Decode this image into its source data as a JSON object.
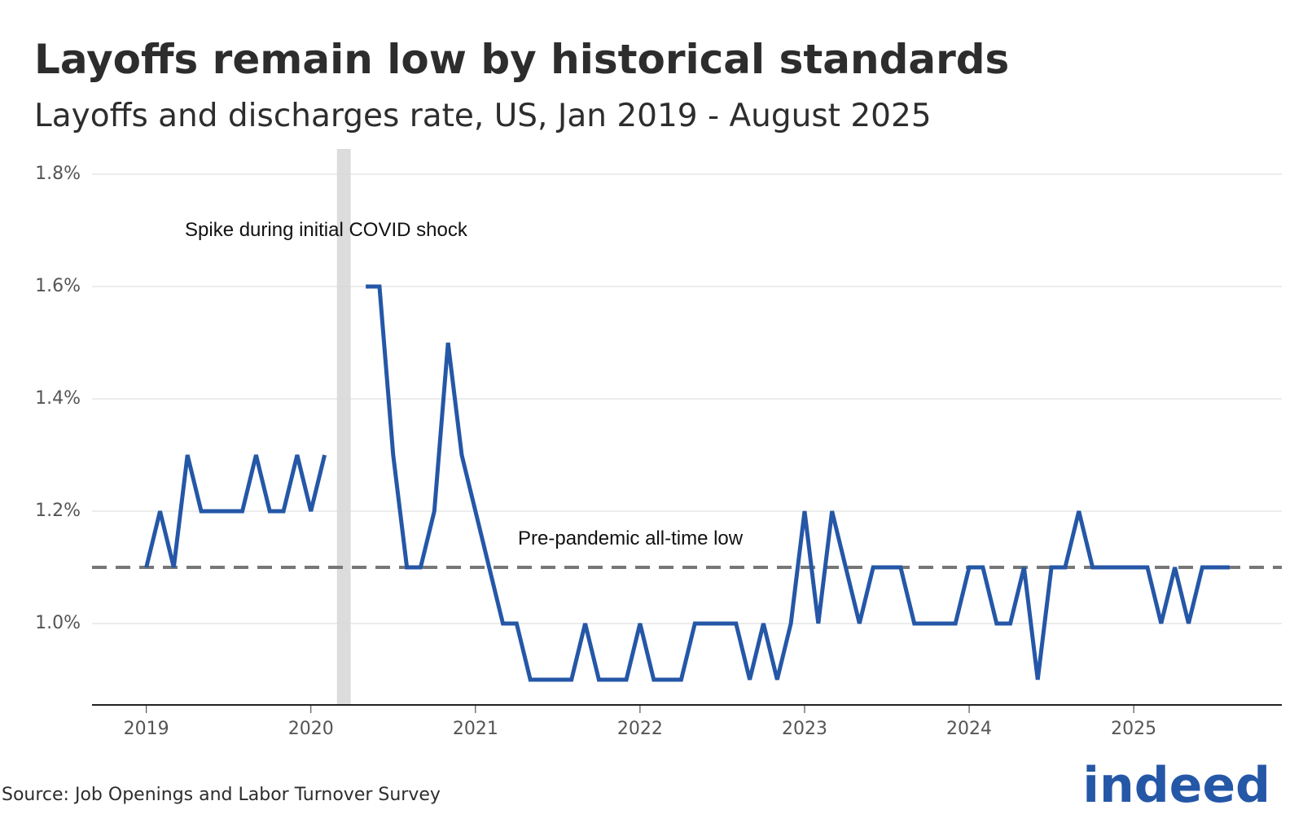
{
  "chart_data": {
    "type": "line",
    "title": "Layoffs remain low by historical standards",
    "subtitle": "Layoffs and discharges rate, US, Jan 2019 - August 2025",
    "source": "Source: Job Openings and Labor Turnover Survey",
    "logo": "indeed",
    "x": [
      "2019-01",
      "2019-02",
      "2019-03",
      "2019-04",
      "2019-05",
      "2019-06",
      "2019-07",
      "2019-08",
      "2019-09",
      "2019-10",
      "2019-11",
      "2019-12",
      "2020-01",
      "2020-02",
      "2020-03",
      "2020-04",
      "2020-05",
      "2020-06",
      "2020-07",
      "2020-08",
      "2020-09",
      "2020-10",
      "2020-11",
      "2020-12",
      "2021-01",
      "2021-02",
      "2021-03",
      "2021-04",
      "2021-05",
      "2021-06",
      "2021-07",
      "2021-08",
      "2021-09",
      "2021-10",
      "2021-11",
      "2021-12",
      "2022-01",
      "2022-02",
      "2022-03",
      "2022-04",
      "2022-05",
      "2022-06",
      "2022-07",
      "2022-08",
      "2022-09",
      "2022-10",
      "2022-11",
      "2022-12",
      "2023-01",
      "2023-02",
      "2023-03",
      "2023-04",
      "2023-05",
      "2023-06",
      "2023-07",
      "2023-08",
      "2023-09",
      "2023-10",
      "2023-11",
      "2023-12",
      "2024-01",
      "2024-02",
      "2024-03",
      "2024-04",
      "2024-05",
      "2024-06",
      "2024-07",
      "2024-08",
      "2024-09",
      "2024-10",
      "2024-11",
      "2024-12",
      "2025-01",
      "2025-02",
      "2025-03",
      "2025-04",
      "2025-05",
      "2025-06",
      "2025-07",
      "2025-08"
    ],
    "series": [
      {
        "name": "Layoffs and discharges rate",
        "color": "#2557a7",
        "values": [
          1.1,
          1.2,
          1.1,
          1.3,
          1.2,
          1.2,
          1.2,
          1.2,
          1.3,
          1.2,
          1.2,
          1.3,
          1.2,
          1.3,
          null,
          null,
          1.6,
          1.6,
          1.3,
          1.1,
          1.1,
          1.2,
          1.5,
          1.3,
          1.2,
          1.1,
          1.0,
          1.0,
          0.9,
          0.9,
          0.9,
          0.9,
          1.0,
          0.9,
          0.9,
          0.9,
          1.0,
          0.9,
          0.9,
          0.9,
          1.0,
          1.0,
          1.0,
          1.0,
          0.9,
          1.0,
          0.9,
          1.0,
          1.2,
          1.0,
          1.2,
          1.1,
          1.0,
          1.1,
          1.1,
          1.1,
          1.0,
          1.0,
          1.0,
          1.0,
          1.1,
          1.1,
          1.0,
          1.0,
          1.1,
          0.9,
          1.1,
          1.1,
          1.2,
          1.1,
          1.1,
          1.1,
          1.1,
          1.1,
          1.0,
          1.1,
          1.0,
          1.1,
          1.1,
          1.1
        ]
      }
    ],
    "xlim": [
      2018.67,
      2025.9
    ],
    "xticks": [
      2019,
      2020,
      2021,
      2022,
      2023,
      2024,
      2025
    ],
    "ylim": [
      0.855,
      1.845
    ],
    "yticks": [
      {
        "value": 1.0,
        "label": "1.0%"
      },
      {
        "value": 1.2,
        "label": "1.2%"
      },
      {
        "value": 1.4,
        "label": "1.4%"
      },
      {
        "value": 1.6,
        "label": "1.6%"
      },
      {
        "value": 1.8,
        "label": "1.8%"
      }
    ],
    "grid": true,
    "highlight": {
      "from": "2020-03",
      "to": "2020-04",
      "label": "Spike during initial COVID shock"
    },
    "reference_line": {
      "value": 1.1,
      "label": "Pre-pandemic all-time low"
    }
  }
}
